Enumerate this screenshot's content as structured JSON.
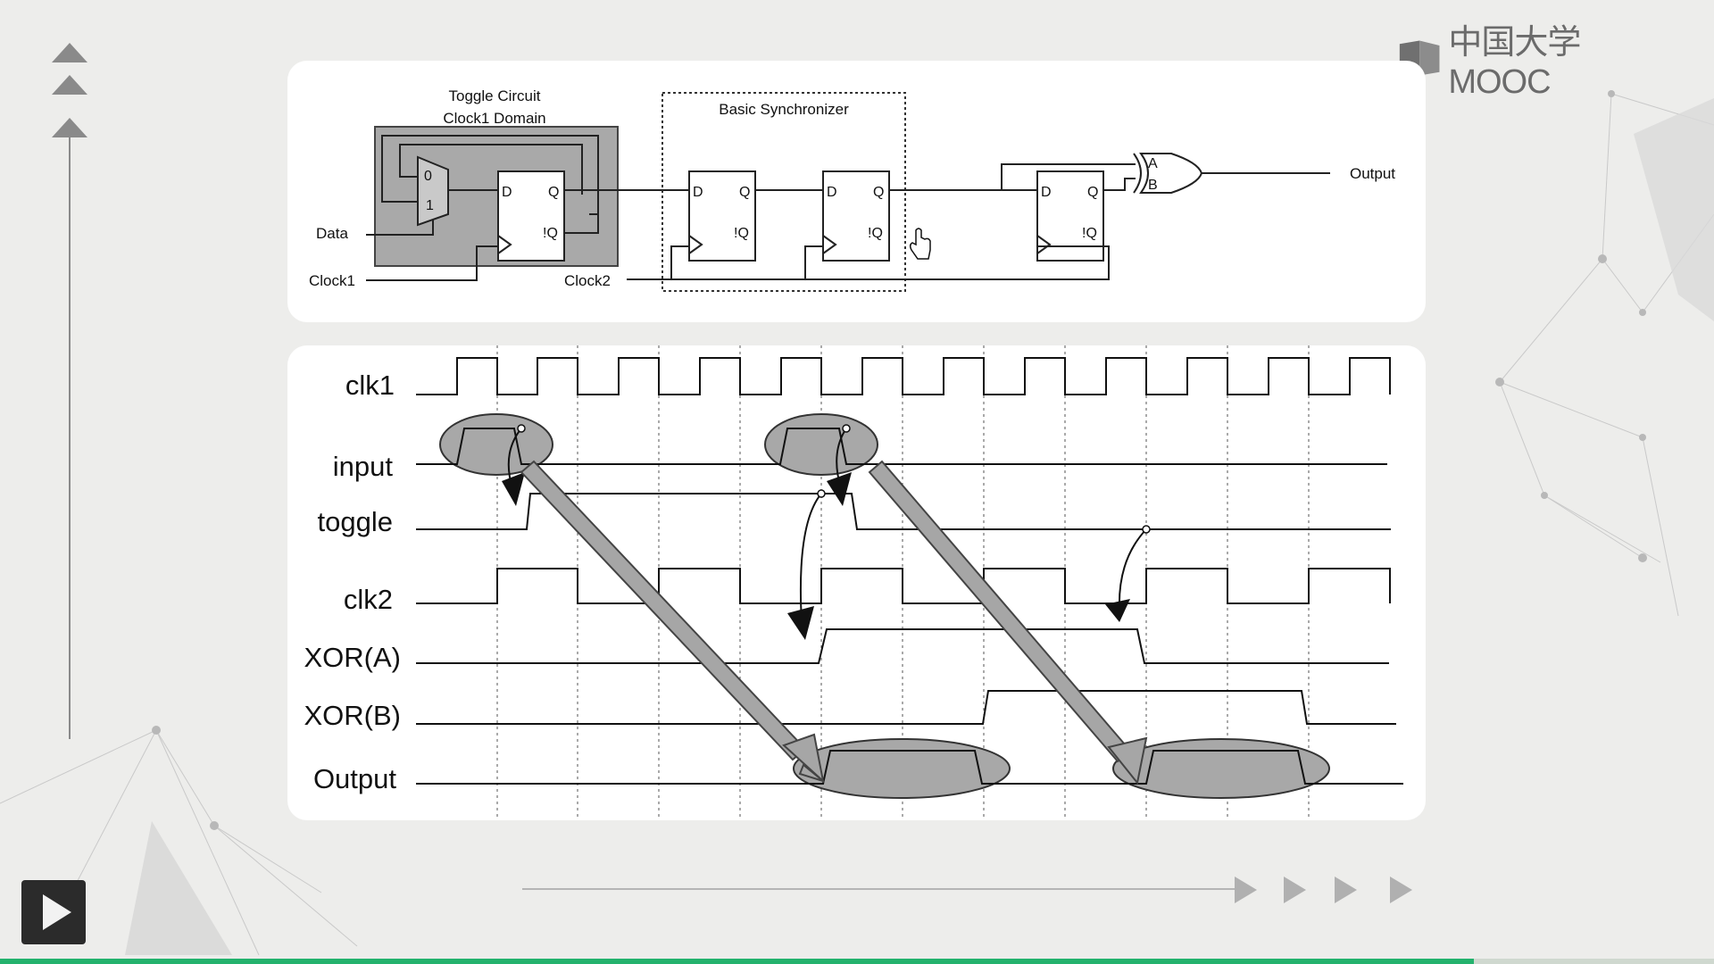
{
  "brand": {
    "name": "中国大学MOOC",
    "logo_icon": "mooc-book-icon"
  },
  "player": {
    "play_icon": "play-icon",
    "progress": 0.86,
    "accent_color": "#23b26d"
  },
  "circuit": {
    "toggle_title_line1": "Toggle Circuit",
    "toggle_title_line2": "Clock1 Domain",
    "sync_title": "Basic Synchronizer",
    "data_label": "Data",
    "clock1_label": "Clock1",
    "clock2_label": "Clock2",
    "output_label": "Output",
    "mux_in0": "0",
    "mux_in1": "1",
    "pin_d": "D",
    "pin_q": "Q",
    "pin_nq": "!Q",
    "xor_a": "A",
    "xor_b": "B"
  },
  "timing": {
    "signals": [
      "clk1",
      "input",
      "toggle",
      "clk2",
      "XOR(A)",
      "XOR(B)",
      "Output"
    ]
  }
}
